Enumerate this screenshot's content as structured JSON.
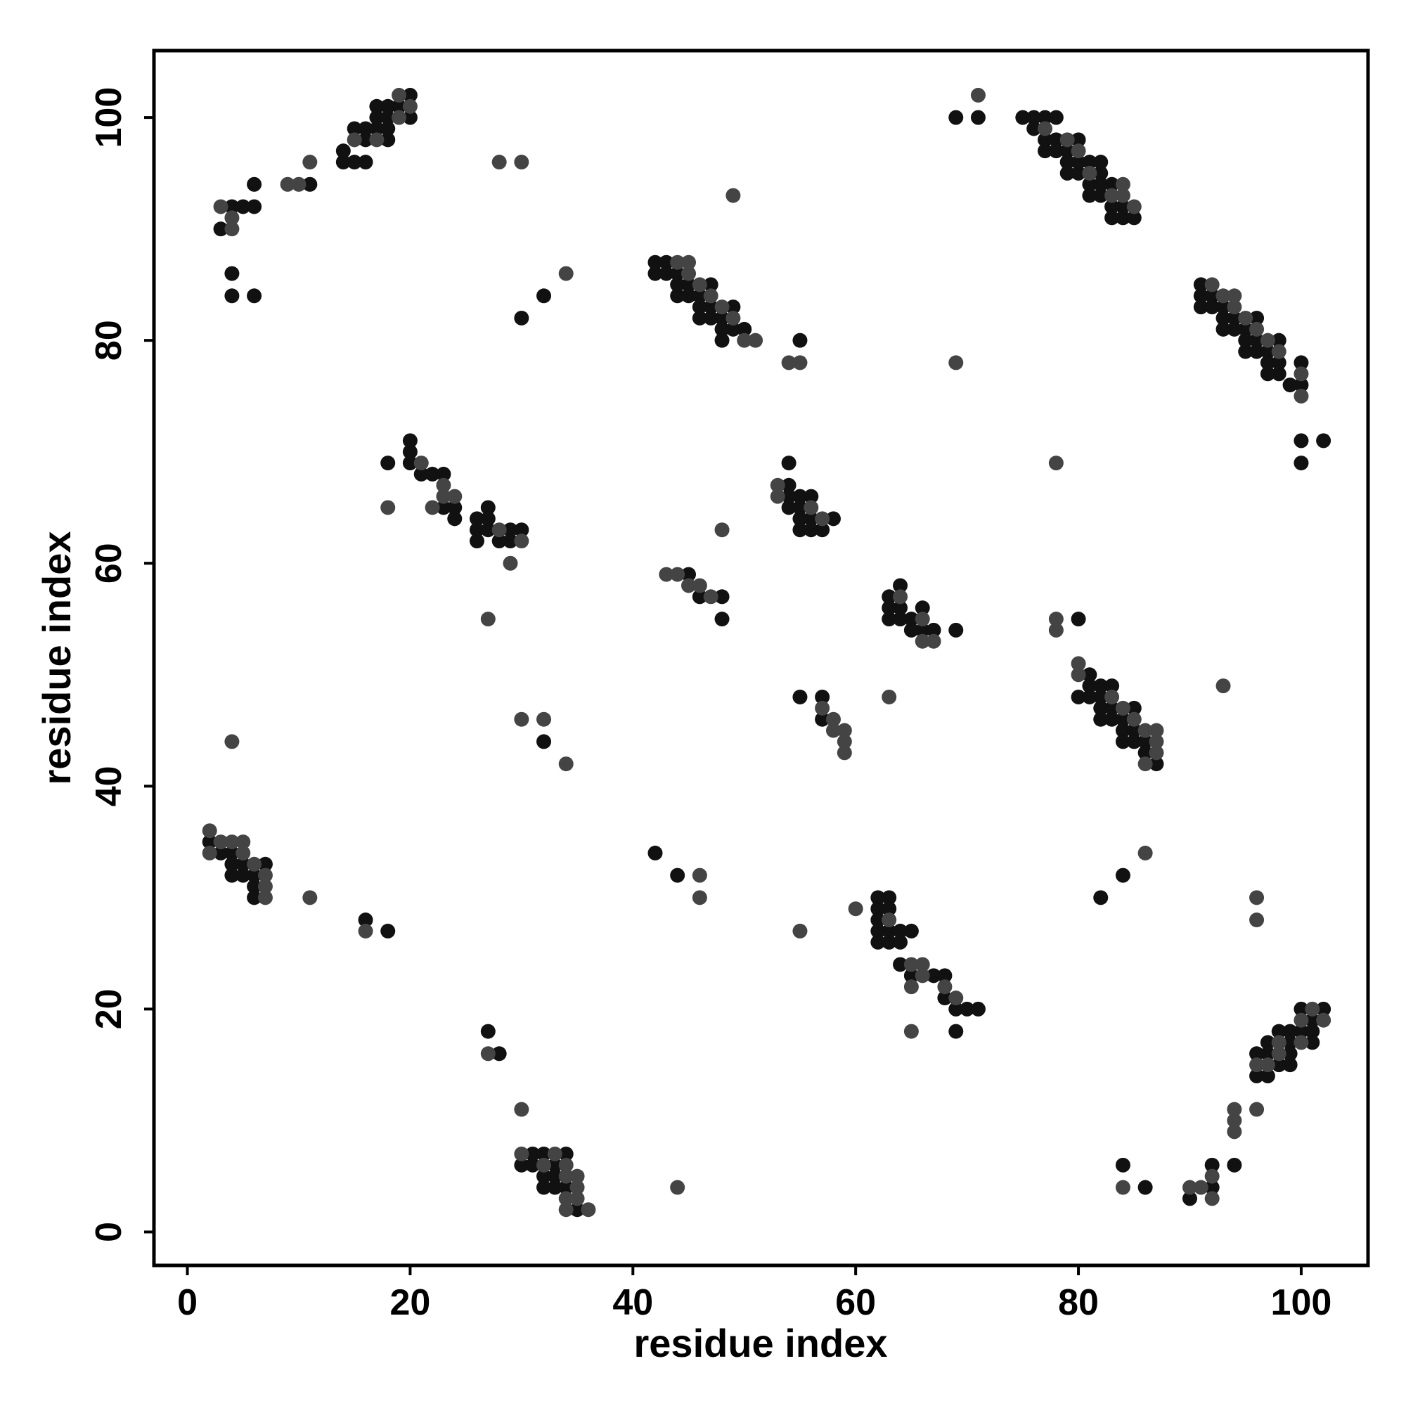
{
  "chart_data": {
    "type": "scatter",
    "xlabel": "residue index",
    "ylabel": "residue index",
    "xlim": [
      -3,
      106
    ],
    "ylim": [
      -3,
      106
    ],
    "xticks": [
      0,
      20,
      40,
      60,
      80,
      100
    ],
    "yticks": [
      0,
      20,
      40,
      60,
      80,
      100
    ],
    "series": [
      {
        "color": "#111111",
        "x": [
          4,
          5,
          6,
          3,
          6,
          4,
          4,
          6,
          11,
          14,
          14,
          15,
          16,
          15,
          16,
          16,
          17,
          17,
          18,
          18,
          18,
          18,
          17,
          19,
          20,
          20,
          32,
          30,
          42,
          43,
          42,
          43,
          44,
          44,
          45,
          47,
          44,
          45,
          46,
          46,
          47,
          49,
          46,
          47,
          48,
          48,
          49,
          50,
          48,
          55,
          69,
          71,
          75,
          76,
          77,
          78,
          76,
          77,
          78,
          80,
          77,
          78,
          79,
          79,
          80,
          81,
          82,
          79,
          80,
          82,
          81,
          82,
          83,
          81,
          82,
          83,
          84,
          83,
          84,
          85,
          91,
          91,
          92,
          91,
          92,
          93,
          93,
          94,
          96,
          93,
          94,
          95,
          95,
          96,
          98,
          95,
          96,
          97,
          97,
          98,
          100,
          97,
          98,
          99,
          100,
          100,
          102,
          100,
          18,
          20,
          20,
          20,
          21,
          22,
          23,
          23,
          24,
          24,
          26,
          27,
          27,
          26,
          27,
          29,
          30,
          26,
          28,
          29,
          54,
          54,
          54,
          55,
          56,
          54,
          55,
          55,
          56,
          58,
          55,
          56,
          57,
          45,
          46,
          48,
          48,
          63,
          64,
          63,
          64,
          63,
          64,
          65,
          66,
          65,
          66,
          67,
          69,
          80,
          81,
          80,
          81,
          81,
          82,
          83,
          82,
          82,
          83,
          85,
          82,
          83,
          84,
          84,
          85,
          84,
          85,
          86,
          86,
          87,
          55,
          57,
          57,
          32,
          2,
          3,
          4,
          4,
          5,
          7,
          4,
          5,
          6,
          6,
          6,
          16,
          18,
          42,
          44,
          84,
          82,
          62,
          63,
          62,
          63,
          62,
          62,
          63,
          64,
          65,
          62,
          63,
          64,
          64,
          65,
          67,
          68,
          68,
          69,
          70,
          71,
          69,
          27,
          28,
          31,
          32,
          34,
          30,
          31,
          33,
          32,
          33,
          32,
          33,
          34,
          35,
          84,
          86,
          92,
          90,
          92,
          94,
          100,
          102,
          101,
          98,
          99,
          100,
          101,
          97,
          99,
          101,
          96,
          97,
          99,
          98,
          99,
          96,
          97
        ],
        "values": [
          92,
          92,
          92,
          90,
          94,
          86,
          84,
          84,
          94,
          97,
          96,
          96,
          96,
          99,
          99,
          98,
          99,
          100,
          101,
          100,
          99,
          98,
          101,
          101,
          102,
          100,
          84,
          82,
          87,
          87,
          86,
          86,
          86,
          85,
          85,
          85,
          84,
          84,
          84,
          83,
          83,
          83,
          82,
          82,
          82,
          81,
          81,
          81,
          80,
          80,
          100,
          100,
          100,
          100,
          100,
          100,
          99,
          98,
          98,
          98,
          97,
          97,
          97,
          96,
          96,
          96,
          96,
          95,
          95,
          95,
          94,
          94,
          94,
          93,
          93,
          92,
          92,
          91,
          91,
          91,
          85,
          84,
          84,
          83,
          83,
          83,
          82,
          82,
          82,
          81,
          81,
          81,
          80,
          80,
          80,
          79,
          79,
          79,
          78,
          78,
          78,
          77,
          77,
          76,
          76,
          71,
          71,
          69,
          69,
          71,
          70,
          69,
          68,
          68,
          68,
          65,
          65,
          64,
          64,
          65,
          64,
          63,
          63,
          63,
          63,
          62,
          62,
          62,
          67,
          69,
          66,
          66,
          66,
          65,
          65,
          64,
          64,
          64,
          63,
          63,
          63,
          59,
          57,
          57,
          55,
          57,
          58,
          56,
          56,
          55,
          55,
          55,
          56,
          54,
          54,
          54,
          54,
          55,
          50,
          48,
          48,
          49,
          49,
          49,
          48,
          47,
          47,
          47,
          46,
          46,
          46,
          45,
          45,
          44,
          44,
          44,
          43,
          42,
          48,
          48,
          46,
          44,
          35,
          34,
          34,
          33,
          33,
          33,
          32,
          32,
          32,
          31,
          30,
          28,
          27,
          34,
          32,
          32,
          30,
          30,
          30,
          29,
          29,
          28,
          27,
          27,
          27,
          27,
          26,
          26,
          26,
          24,
          23,
          23,
          23,
          21,
          20,
          20,
          20,
          18,
          18,
          16,
          7,
          7,
          7,
          6,
          6,
          6,
          5,
          5,
          4,
          4,
          4,
          2,
          6,
          4,
          4,
          3,
          6,
          6,
          20,
          20,
          19,
          18,
          18,
          18,
          18,
          17,
          17,
          17,
          16,
          16,
          16,
          15,
          15,
          14,
          14
        ]
      },
      {
        "color": "#444444",
        "x": [
          3,
          4,
          4,
          9,
          10,
          11,
          15,
          17,
          19,
          20,
          19,
          28,
          30,
          49,
          34,
          44,
          45,
          45,
          46,
          47,
          48,
          49,
          50,
          51,
          54,
          55,
          71,
          77,
          79,
          80,
          81,
          84,
          83,
          84,
          85,
          69,
          92,
          93,
          94,
          94,
          95,
          96,
          97,
          98,
          100,
          100,
          78,
          18,
          21,
          23,
          23,
          24,
          22,
          28,
          30,
          29,
          27,
          53,
          53,
          56,
          57,
          48,
          43,
          44,
          45,
          46,
          47,
          64,
          66,
          66,
          67,
          63,
          78,
          78,
          80,
          80,
          83,
          84,
          85,
          86,
          87,
          87,
          87,
          86,
          93,
          57,
          58,
          58,
          59,
          59,
          59,
          30,
          32,
          34,
          4,
          2,
          3,
          4,
          5,
          2,
          5,
          6,
          7,
          7,
          7,
          11,
          16,
          46,
          46,
          60,
          55,
          86,
          96,
          96,
          63,
          65,
          66,
          66,
          65,
          68,
          69,
          65,
          27,
          30,
          30,
          33,
          32,
          34,
          34,
          35,
          35,
          34,
          35,
          34,
          36,
          44,
          84,
          90,
          91,
          92,
          92,
          94,
          94,
          94,
          96,
          101,
          102,
          100,
          98,
          100,
          98,
          96,
          97
        ],
        "values": [
          92,
          91,
          90,
          94,
          94,
          96,
          98,
          98,
          102,
          101,
          100,
          96,
          96,
          93,
          86,
          87,
          87,
          86,
          85,
          84,
          83,
          82,
          80,
          80,
          78,
          78,
          102,
          99,
          98,
          97,
          95,
          94,
          93,
          93,
          92,
          78,
          85,
          84,
          84,
          83,
          82,
          81,
          80,
          79,
          77,
          75,
          69,
          65,
          69,
          67,
          66,
          66,
          65,
          63,
          62,
          60,
          55,
          67,
          66,
          65,
          64,
          63,
          59,
          59,
          58,
          58,
          57,
          57,
          55,
          53,
          53,
          48,
          55,
          54,
          51,
          50,
          48,
          47,
          46,
          45,
          45,
          44,
          43,
          42,
          49,
          47,
          46,
          45,
          45,
          44,
          43,
          46,
          46,
          42,
          44,
          36,
          35,
          35,
          35,
          34,
          34,
          33,
          32,
          31,
          30,
          30,
          27,
          32,
          30,
          29,
          27,
          34,
          30,
          28,
          28,
          24,
          24,
          23,
          22,
          22,
          21,
          18,
          16,
          11,
          7,
          7,
          6,
          6,
          5,
          5,
          4,
          3,
          3,
          2,
          2,
          4,
          4,
          4,
          4,
          3,
          5,
          11,
          10,
          9,
          11,
          20,
          19,
          19,
          17,
          17,
          16,
          15,
          15
        ]
      }
    ]
  }
}
